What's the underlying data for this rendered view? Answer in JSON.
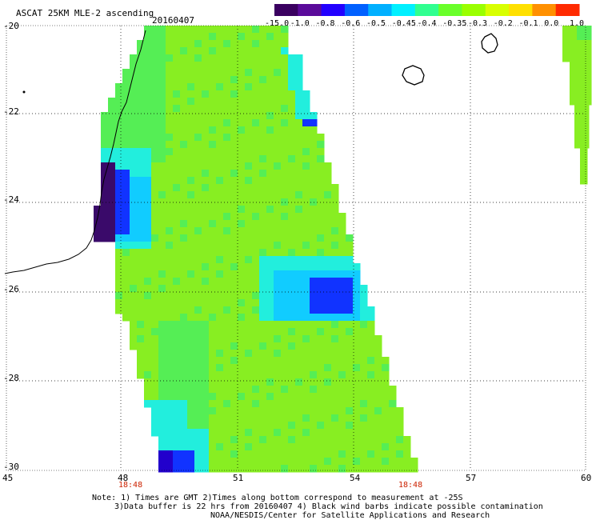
{
  "header": {
    "title": "ASCAT 25KM MLE-2 ascending",
    "date": "20160407"
  },
  "colorbar": {
    "labels": [
      "-15.0",
      "-1.0",
      "-0.8",
      "-0.6",
      "-0.5",
      "-0.45",
      "-0.4",
      "-0.35",
      "-0.3",
      "-0.2",
      "-0.1",
      "0.0",
      "1.0"
    ],
    "colors": [
      "#3a0060",
      "#5a0a9a",
      "#2200ff",
      "#0060ff",
      "#00b0ff",
      "#00f0ff",
      "#30ff90",
      "#6aff2a",
      "#9aff00",
      "#d8ff00",
      "#ffe000",
      "#ff9000",
      "#ff2a00"
    ]
  },
  "axes": {
    "lat_labels": [
      "-20",
      "-22",
      "-24",
      "-26",
      "-28",
      "-30"
    ],
    "lon_labels": [
      "45",
      "48",
      "51",
      "54",
      "57",
      "60"
    ],
    "time_labels": [
      "18:48",
      "18:48"
    ],
    "time_color": "#cc2200"
  },
  "footer": {
    "line1": "Note: 1) Times are GMT 2)Times along bottom correspond to measurement at -25S",
    "line2": "3)Data buffer is 22 hrs from 20160407 4) Black wind barbs indicate possible contamination",
    "line3": "NOAA/NESDIS/Center for Satellite Applications and Research"
  },
  "swath_colors": {
    "base": "#88ee22",
    "light": "#55ee55",
    "cyan": "#22eedd",
    "aqua": "#11ccff",
    "blue": "#1133ff",
    "navy": "#2200cc",
    "purple": "#3a0a6a"
  }
}
